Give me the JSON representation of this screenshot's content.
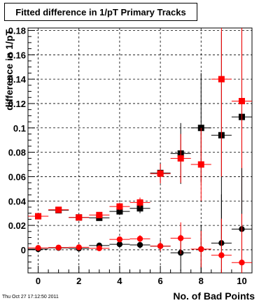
{
  "title": "Fitted difference in 1/pT Primary Tracks",
  "footer": "Thu Oct 27 17:12:50 2011",
  "chart_data": {
    "type": "scatter",
    "title": "Fitted difference in 1/pT Primary Tracks",
    "xlabel": "No. of Bad Points",
    "ylabel": "difference in 1/pT",
    "xlim": [
      -0.5,
      10.5
    ],
    "ylim": [
      -0.019,
      0.182
    ],
    "grid": true,
    "x_ticks": [
      0,
      2,
      4,
      6,
      8,
      10
    ],
    "y_ticks": [
      0,
      0.02,
      0.04,
      0.06,
      0.08,
      0.1,
      0.12,
      0.14,
      0.16,
      0.18
    ],
    "y_tick_labels": [
      "0",
      "0.02",
      "0.04",
      "0.06",
      "0.08",
      "0.1",
      "0.12",
      "0.14",
      "0.16",
      "0.18"
    ],
    "x_errors": 0.5,
    "series": [
      {
        "marker": "square",
        "color": "#000000",
        "x": [
          0,
          1,
          2,
          3,
          4,
          5,
          6,
          7,
          8,
          9,
          10
        ],
        "y": [
          0.0275,
          0.0325,
          0.0265,
          0.0262,
          0.0315,
          0.034,
          0.063,
          0.079,
          0.1,
          0.094,
          0.109
        ],
        "yerr": [
          0.001,
          0.001,
          0.001,
          0.002,
          0.003,
          0.004,
          0.008,
          0.025,
          0.045,
          0.085,
          0.09
        ]
      },
      {
        "marker": "square",
        "color": "#ff0000",
        "x": [
          0,
          1,
          2,
          3,
          4,
          5,
          6,
          7,
          8,
          9,
          10
        ],
        "y": [
          0.0275,
          0.0328,
          0.0265,
          0.0285,
          0.0355,
          0.0388,
          0.0625,
          0.075,
          0.07,
          0.14,
          0.122
        ],
        "yerr": [
          0.001,
          0.001,
          0.001,
          0.002,
          0.003,
          0.004,
          0.008,
          0.02,
          0.03,
          0.08,
          0.09
        ]
      },
      {
        "marker": "circle",
        "color": "#000000",
        "x": [
          0,
          1,
          2,
          3,
          4,
          5,
          6,
          7,
          8,
          9,
          10
        ],
        "y": [
          0.0005,
          0.0015,
          0.001,
          0.0035,
          0.0045,
          0.004,
          0.003,
          -0.0025,
          0.0005,
          0.0055,
          0.017
        ],
        "yerr": [
          0.001,
          0.001,
          0.001,
          0.002,
          0.002,
          0.003,
          0.005,
          0.015,
          0.02,
          0.04,
          0.05
        ]
      },
      {
        "marker": "circle",
        "color": "#ff0000",
        "x": [
          0,
          1,
          2,
          3,
          4,
          5,
          6,
          7,
          8,
          9,
          10
        ],
        "y": [
          0.0015,
          0.0018,
          0.002,
          0.0012,
          0.0085,
          0.009,
          0.003,
          0.0095,
          0.0005,
          -0.0045,
          -0.0105
        ],
        "yerr": [
          0.001,
          0.001,
          0.001,
          0.002,
          0.002,
          0.003,
          0.004,
          0.013,
          0.015,
          0.03,
          0.04
        ]
      }
    ]
  }
}
